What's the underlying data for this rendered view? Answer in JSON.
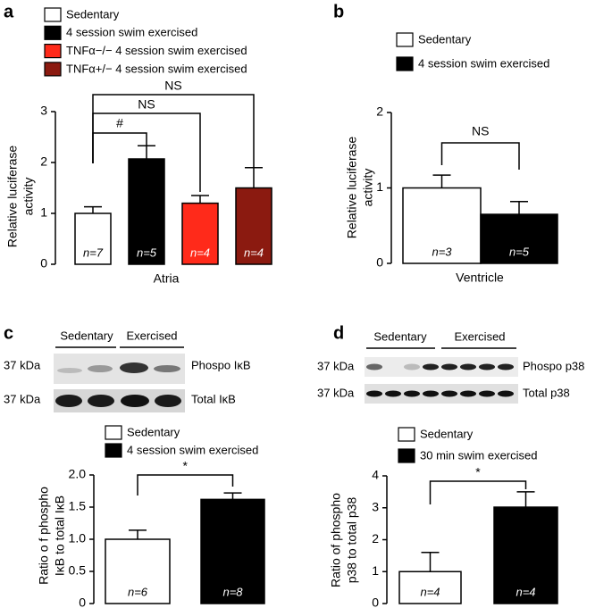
{
  "chart_data": [
    {
      "type": "bar",
      "panel": "a",
      "ylabel": [
        "Relative luciferase",
        "activity"
      ],
      "xlabel": "Atria",
      "ylim": [
        0,
        3
      ],
      "yticks": [
        0,
        1,
        2,
        3
      ],
      "series": [
        {
          "name": "Sedentary",
          "color": "#ffffff",
          "values": [
            1.0
          ],
          "errors": [
            0.13
          ],
          "n_label": "n=7"
        },
        {
          "name": "4 session swim exercised",
          "color": "#000000",
          "values": [
            2.07
          ],
          "errors": [
            0.26
          ],
          "n_label": "n=5"
        },
        {
          "name": "TNFα−/− 4 session swim exercised",
          "color": "#ff2a1a",
          "values": [
            1.2
          ],
          "errors": [
            0.15
          ],
          "n_label": "n=4"
        },
        {
          "name": "TNFα+/− 4 session swim exercised",
          "color": "#8b1a10",
          "values": [
            1.5
          ],
          "errors": [
            0.4
          ],
          "n_label": "n=4"
        }
      ],
      "annotations": [
        "NS",
        "NS",
        "#"
      ]
    },
    {
      "type": "bar",
      "panel": "b",
      "ylabel": [
        "Relative luciferase",
        "activity"
      ],
      "xlabel": "Ventricle",
      "ylim": [
        0,
        2
      ],
      "yticks": [
        0,
        1,
        2
      ],
      "series": [
        {
          "name": "Sedentary",
          "color": "#ffffff",
          "values": [
            1.0
          ],
          "errors": [
            0.17
          ],
          "n_label": "n=3"
        },
        {
          "name": "4 session swim exercised",
          "color": "#000000",
          "values": [
            0.65
          ],
          "errors": [
            0.17
          ],
          "n_label": "n=5"
        }
      ],
      "annotations": [
        "NS"
      ]
    },
    {
      "type": "bar",
      "panel": "c",
      "ylabel": [
        "Ratio o f phospho",
        "IκB to total IκB"
      ],
      "ylim": [
        0,
        2
      ],
      "yticks": [
        0,
        0.5,
        {
          "value": 1,
          "label": "1.0"
        },
        1.5,
        {
          "value": 2,
          "label": "2.0"
        }
      ],
      "series": [
        {
          "name": "Sedentary",
          "color": "#ffffff",
          "values": [
            1.0
          ],
          "errors": [
            0.14
          ],
          "n_label": "n=6"
        },
        {
          "name": "4 session swim exercised",
          "color": "#000000",
          "values": [
            1.62
          ],
          "errors": [
            0.1
          ],
          "n_label": "n=8"
        }
      ],
      "annotations": [
        "*"
      ]
    },
    {
      "type": "bar",
      "panel": "d",
      "ylabel": [
        "Ratio of phospho",
        "p38 to total p38"
      ],
      "ylim": [
        0,
        4
      ],
      "yticks": [
        0,
        1,
        2,
        3,
        4
      ],
      "series": [
        {
          "name": "Sedentary",
          "color": "#ffffff",
          "values": [
            1.0
          ],
          "errors": [
            0.6
          ],
          "n_label": "n=4"
        },
        {
          "name": "30 min swim exercised",
          "color": "#000000",
          "values": [
            3.02
          ],
          "errors": [
            0.48
          ],
          "n_label": "n=4"
        }
      ],
      "annotations": [
        "*"
      ]
    }
  ],
  "blots": [
    {
      "groups": [
        "Sedentary",
        "Exercised"
      ],
      "rows": [
        {
          "size": "37 kDa",
          "label": "Phospo IκB"
        },
        {
          "size": "37 kDa",
          "label": "Total IκB"
        }
      ]
    },
    {
      "groups": [
        "Sedentary",
        "Exercised"
      ],
      "rows": [
        {
          "size": "37 kDa",
          "label": "Phospo p38"
        },
        {
          "size": "37 kDa",
          "label": "Total p38"
        }
      ]
    }
  ]
}
